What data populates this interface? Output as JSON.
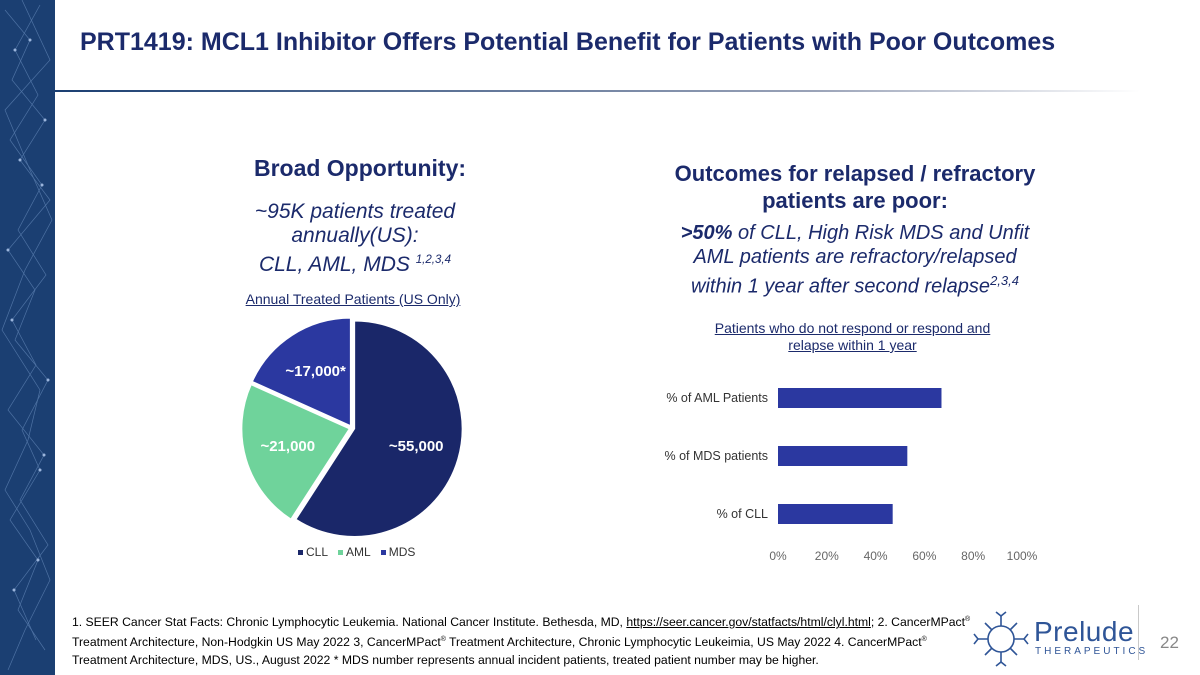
{
  "slide": {
    "title": "PRT1419:  MCL1 Inhibitor Offers Potential Benefit for Patients with Poor Outcomes",
    "page_number": "22"
  },
  "left": {
    "heading": "Broad Opportunity:",
    "line1": "~95K patients treated",
    "line2": "annually(US):",
    "line3": "CLL, AML, MDS ",
    "line3_sup": "1,2,3,4"
  },
  "right": {
    "heading_line1": "Outcomes for relapsed / refractory",
    "heading_line2": "patients are poor:",
    "bold_pct": ">50%",
    "line1_rest": " of CLL, High Risk MDS and Unfit",
    "line2": "AML patients are refractory/relapsed",
    "line3": "within 1 year after second relapse",
    "line3_sup": "2,3,4"
  },
  "chart_data": [
    {
      "type": "pie",
      "title": "Annual Treated Patients (US Only)",
      "categories": [
        "CLL",
        "AML",
        "MDS"
      ],
      "values": [
        55000,
        21000,
        17000
      ],
      "data_labels": [
        "~55,000",
        "~21,000",
        "~17,000*"
      ],
      "colors": [
        "#1a2769",
        "#6fd39b",
        "#2b38a0"
      ],
      "legend_position": "bottom"
    },
    {
      "type": "bar",
      "orientation": "horizontal",
      "title": "Patients who do not respond or respond and relapse within 1 year",
      "categories": [
        "% of AML Patients",
        "% of MDS patients",
        "% of CLL"
      ],
      "values": [
        67,
        53,
        47
      ],
      "xlim": [
        0,
        100
      ],
      "x_ticks": [
        "0%",
        "20%",
        "40%",
        "60%",
        "80%",
        "100%"
      ],
      "color": "#2b38a0",
      "grid": false
    }
  ],
  "footnote": {
    "p1": "1. SEER Cancer Stat Facts: Chronic Lymphocytic Leukemia. National Cancer Institute. Bethesda, MD, ",
    "link": "https://seer.cancer.gov/statfacts/html/clyl.html",
    "p2": ";  2. CancerMPact",
    "p3": " Treatment Architecture, Non-Hodgkin US May 2022 3, CancerMPact",
    "p4": " Treatment Architecture, Chronic Lymphocytic Leukeimia, US May 2022 4. CancerMPact",
    "p5": " Treatment Architecture, MDS, US., August 2022 * MDS number represents annual incident patients, treated patient number may be higher.",
    "reg": "®"
  },
  "logo": {
    "name": "Prelude",
    "subtitle": "THERAPEUTICS"
  }
}
